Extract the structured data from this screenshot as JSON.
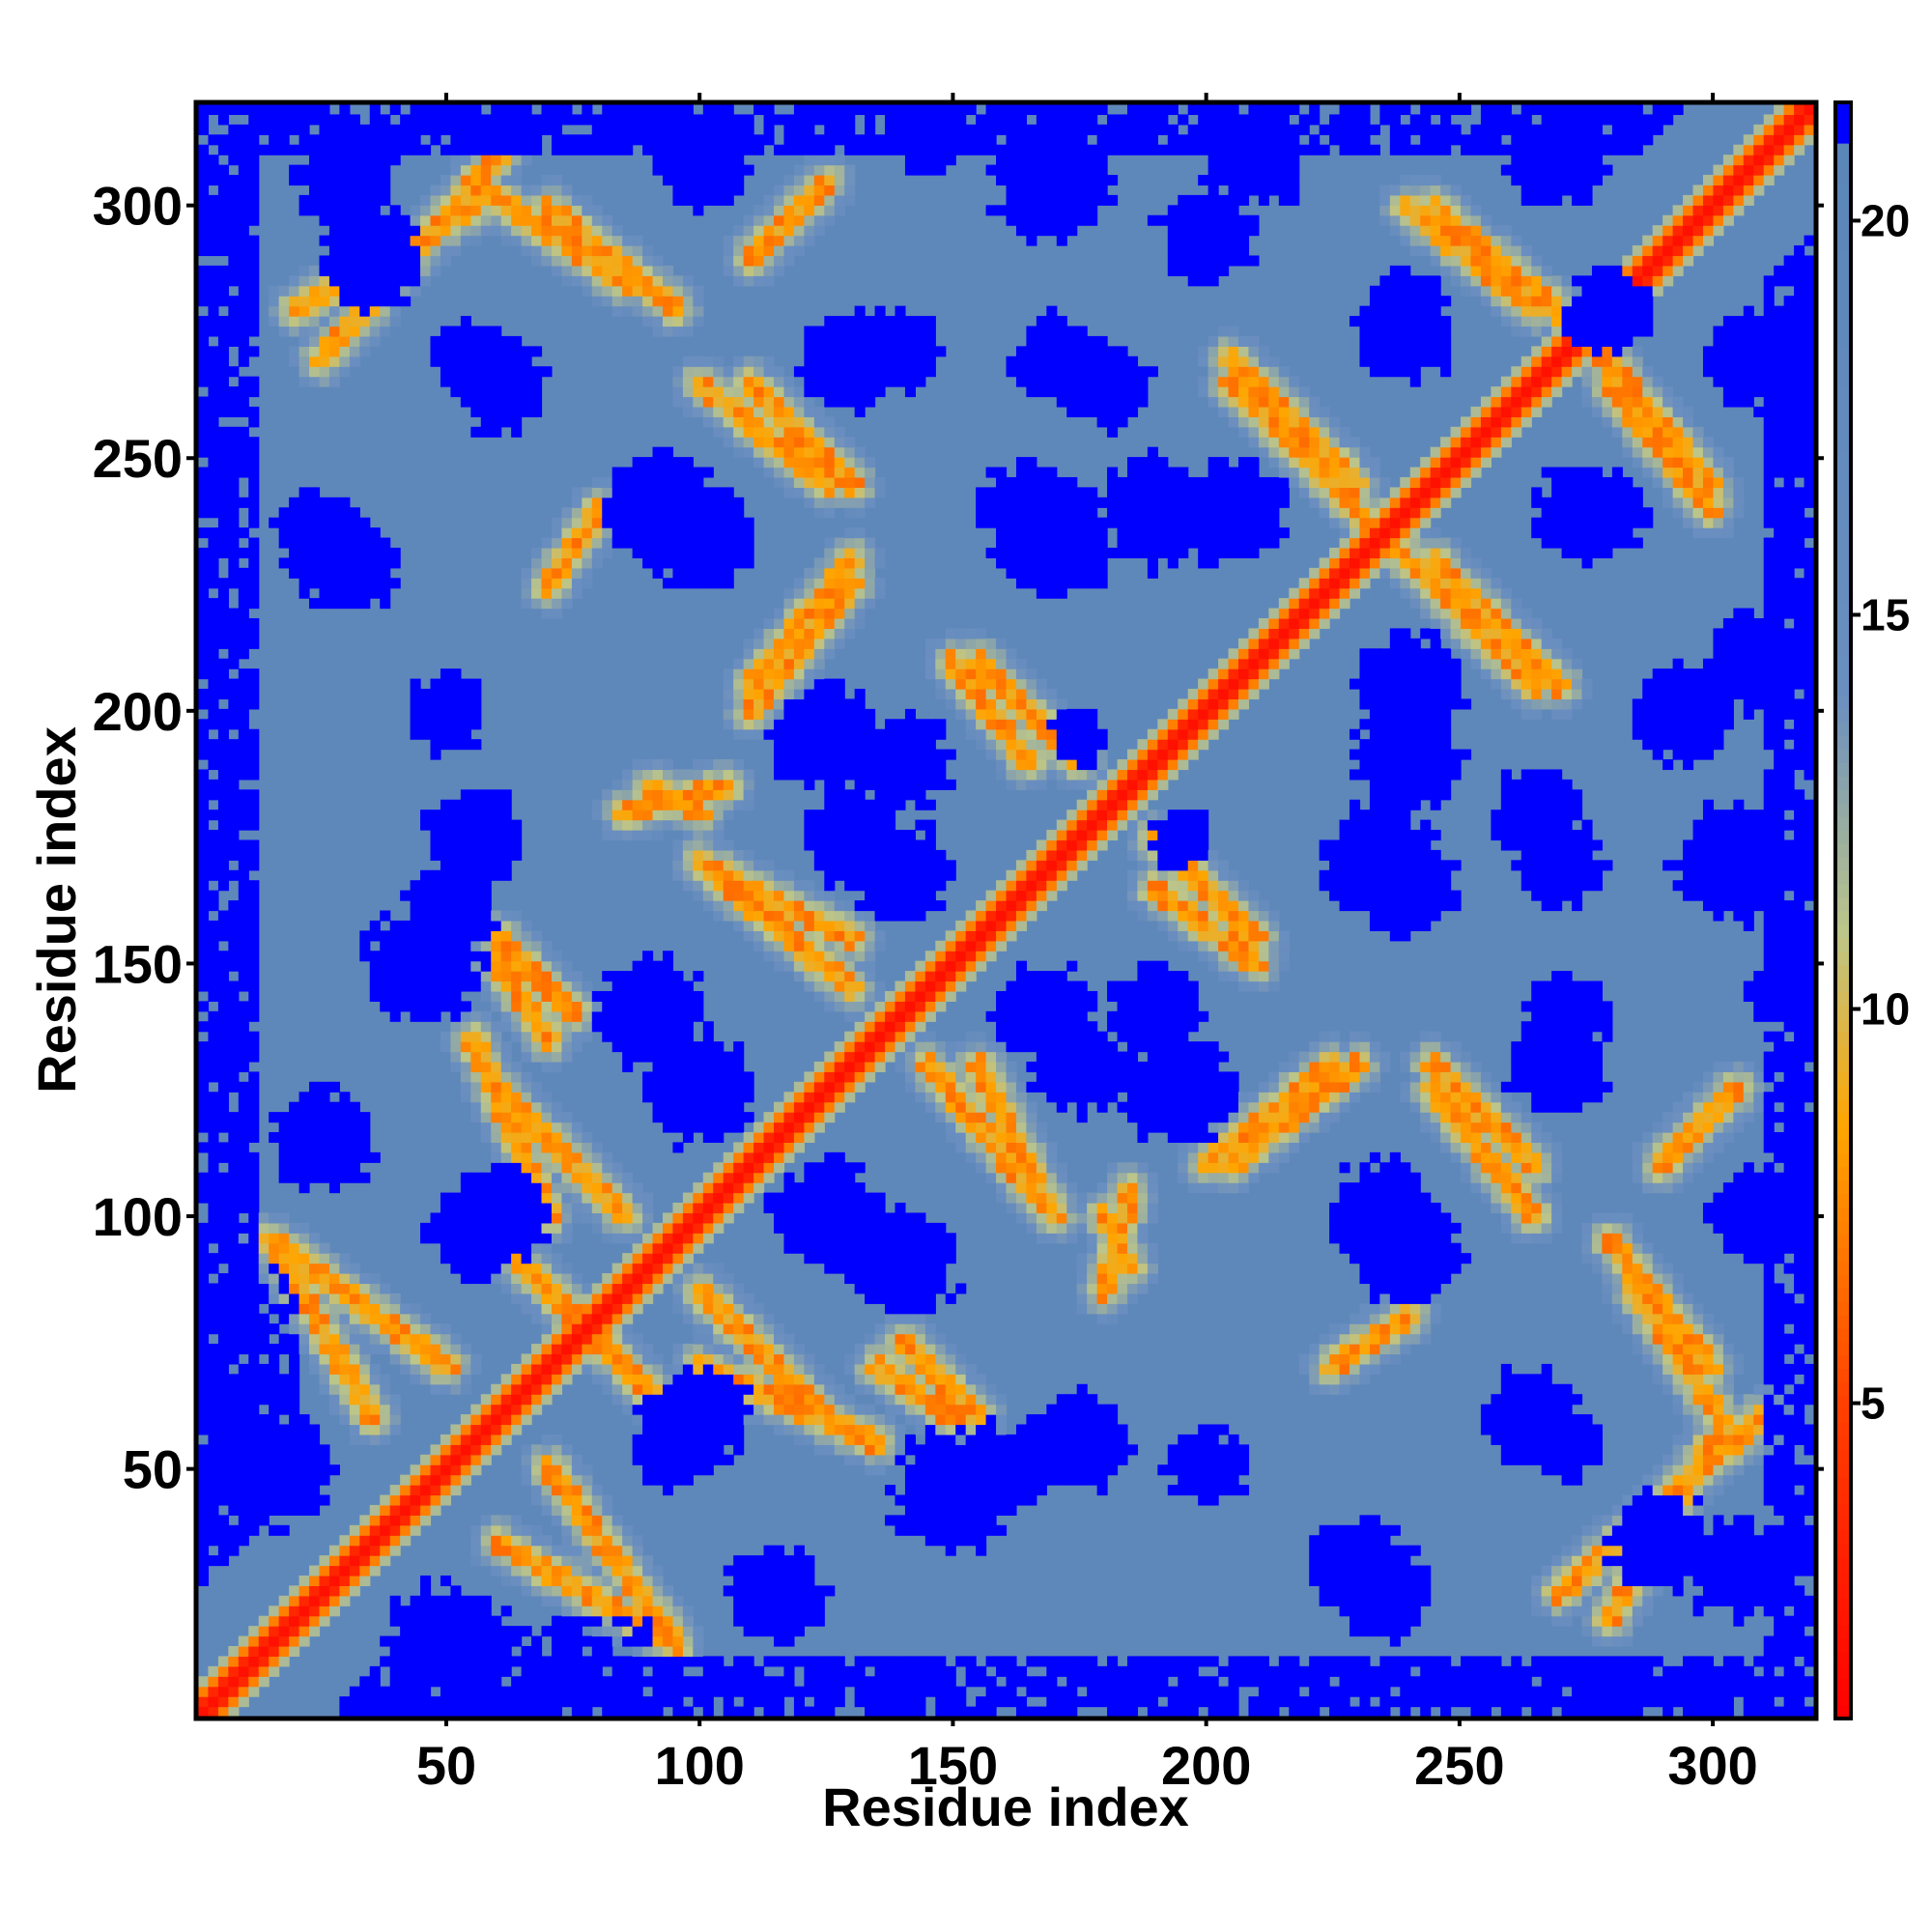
{
  "chart_data": {
    "type": "heatmap",
    "title": "",
    "xlabel": "Residue index",
    "ylabel": "Residue index",
    "xlim": [
      1,
      320
    ],
    "ylim": [
      1,
      320
    ],
    "x_ticks": [
      50,
      100,
      150,
      200,
      250,
      300
    ],
    "y_ticks": [
      50,
      100,
      150,
      200,
      250,
      300
    ],
    "colorbar": {
      "ticks": [
        5,
        10,
        15,
        20
      ],
      "range": [
        1,
        21.5
      ],
      "stops": [
        {
          "value": 1,
          "color": "#ff0000"
        },
        {
          "value": 5,
          "color": "#ff4000"
        },
        {
          "value": 8.5,
          "color": "#ffa500"
        },
        {
          "value": 11,
          "color": "#bcc58a"
        },
        {
          "value": 14,
          "color": "#6a8ec0"
        },
        {
          "value": 20.9,
          "color": "#5b86b8"
        },
        {
          "value": 21,
          "color": "#0000ff"
        }
      ]
    },
    "matrix": {
      "description_values": "Symmetric residue-residue distance map (Angstrom); diagonal band near 0-5, antiparallel contact stripes ~6-12, background ~15-20, far pairs capped at >20",
      "diagonal_value": 2,
      "background_value": 19,
      "far_value": 21,
      "contact_stripes": [
        {
          "from": [
            60,
            95
          ],
          "to": [
            95,
            60
          ]
        },
        {
          "from": [
            15,
            95
          ],
          "to": [
            50,
            70
          ]
        },
        {
          "from": [
            60,
            35
          ],
          "to": [
            95,
            15
          ]
        },
        {
          "from": [
            100,
            70
          ],
          "to": [
            135,
            55
          ]
        },
        {
          "from": [
            150,
            60
          ],
          "to": [
            135,
            70
          ]
        },
        {
          "from": [
            60,
            125
          ],
          "to": [
            85,
            100
          ]
        },
        {
          "from": [
            100,
            170
          ],
          "to": [
            130,
            145
          ]
        },
        {
          "from": [
            60,
            155
          ],
          "to": [
            75,
            140
          ]
        },
        {
          "from": [
            155,
            130
          ],
          "to": [
            170,
            100
          ]
        },
        {
          "from": [
            180,
            100
          ],
          "to": [
            185,
            90
          ]
        },
        {
          "from": [
            190,
            175
          ],
          "to": [
            210,
            155
          ]
        },
        {
          "from": [
            205,
            110
          ],
          "to": [
            230,
            130
          ]
        },
        {
          "from": [
            245,
            125
          ],
          "to": [
            265,
            100
          ]
        },
        {
          "from": [
            280,
            95
          ],
          "to": [
            300,
            70
          ]
        },
        {
          "from": [
            270,
            25
          ],
          "to": [
            310,
            60
          ]
        },
        {
          "from": [
            110,
            200
          ],
          "to": [
            130,
            225
          ]
        },
        {
          "from": [
            150,
            210
          ],
          "to": [
            165,
            190
          ]
        },
        {
          "from": [
            85,
            180
          ],
          "to": [
            105,
            185
          ]
        },
        {
          "from": [
            230,
            240
          ],
          "to": [
            265,
            205
          ]
        },
        {
          "from": [
            205,
            270
          ],
          "to": [
            230,
            245
          ]
        },
        {
          "from": [
            240,
            300
          ],
          "to": [
            265,
            280
          ]
        },
        {
          "from": [
            275,
            275
          ],
          "to": [
            300,
            245
          ]
        },
        {
          "from": [
            20,
            280
          ],
          "to": [
            55,
            300
          ]
        },
        {
          "from": [
            55,
            305
          ],
          "to": [
            85,
            285
          ]
        },
        {
          "from": [
            110,
            290
          ],
          "to": [
            125,
            305
          ]
        },
        {
          "from": [
            110,
            265
          ],
          "to": [
            130,
            245
          ]
        },
        {
          "from": [
            70,
            225
          ],
          "to": [
            80,
            240
          ]
        }
      ],
      "far_regions": [
        {
          "x": 15,
          "y": 50,
          "r": 12
        },
        {
          "x": 45,
          "y": 150,
          "r": 12
        },
        {
          "x": 25,
          "y": 235,
          "r": 10
        },
        {
          "x": 35,
          "y": 290,
          "r": 10
        },
        {
          "x": 60,
          "y": 100,
          "r": 10
        },
        {
          "x": 55,
          "y": 175,
          "r": 10
        },
        {
          "x": 60,
          "y": 265,
          "r": 10
        },
        {
          "x": 90,
          "y": 140,
          "r": 11
        },
        {
          "x": 92,
          "y": 240,
          "r": 11
        },
        {
          "x": 95,
          "y": 55,
          "r": 9
        },
        {
          "x": 115,
          "y": 25,
          "r": 10
        },
        {
          "x": 125,
          "y": 100,
          "r": 11
        },
        {
          "x": 125,
          "y": 195,
          "r": 11
        },
        {
          "x": 130,
          "y": 175,
          "r": 10
        },
        {
          "x": 130,
          "y": 270,
          "r": 10
        },
        {
          "x": 160,
          "y": 50,
          "r": 9
        },
        {
          "x": 168,
          "y": 140,
          "r": 10
        },
        {
          "x": 165,
          "y": 240,
          "r": 10
        },
        {
          "x": 170,
          "y": 270,
          "r": 9
        },
        {
          "x": 190,
          "y": 140,
          "r": 10
        },
        {
          "x": 190,
          "y": 240,
          "r": 11
        },
        {
          "x": 175,
          "y": 195,
          "r": 6
        },
        {
          "x": 200,
          "y": 50,
          "r": 8
        },
        {
          "x": 200,
          "y": 295,
          "r": 10
        },
        {
          "x": 235,
          "y": 100,
          "r": 11
        },
        {
          "x": 235,
          "y": 170,
          "r": 12
        },
        {
          "x": 240,
          "y": 205,
          "r": 11
        },
        {
          "x": 230,
          "y": 30,
          "r": 10
        },
        {
          "x": 265,
          "y": 180,
          "r": 9
        },
        {
          "x": 270,
          "y": 55,
          "r": 8
        },
        {
          "x": 272,
          "y": 140,
          "r": 8
        },
        {
          "x": 275,
          "y": 240,
          "r": 10
        },
        {
          "x": 280,
          "y": 280,
          "r": 9
        },
        {
          "x": 240,
          "y": 280,
          "r": 8
        },
        {
          "x": 305,
          "y": 30,
          "r": 10
        },
        {
          "x": 310,
          "y": 100,
          "r": 10
        },
        {
          "x": 305,
          "y": 170,
          "r": 12
        },
        {
          "x": 310,
          "y": 210,
          "r": 10
        },
        {
          "x": 310,
          "y": 270,
          "r": 10
        },
        {
          "x": 315,
          "y": 145,
          "r": 8
        }
      ]
    }
  }
}
